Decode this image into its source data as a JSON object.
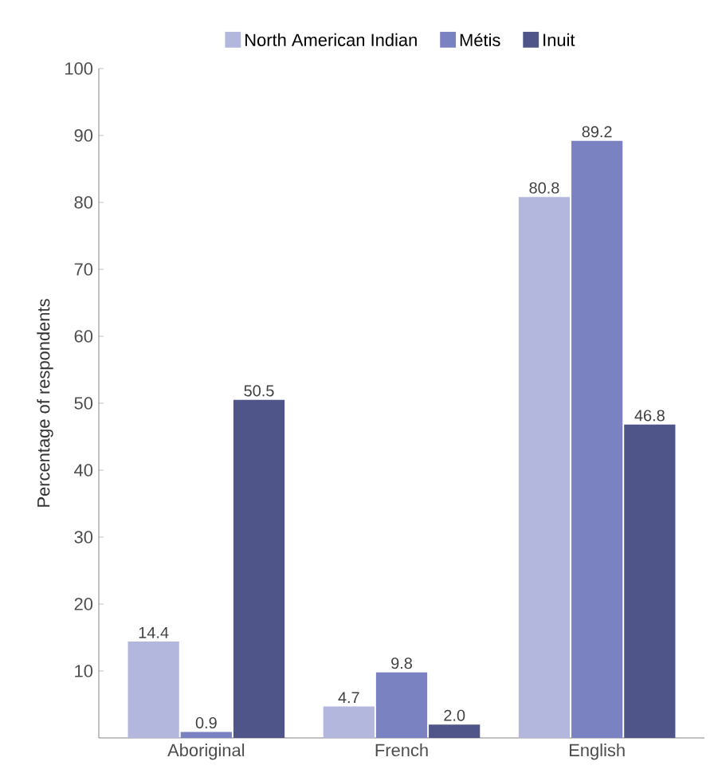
{
  "chart_data": {
    "type": "bar",
    "ylabel": "Percentage of respondents",
    "categories": [
      "Aboriginal",
      "French",
      "English"
    ],
    "series": [
      {
        "name": "North American Indian",
        "color": "#b3b7dd",
        "values": [
          14.4,
          4.7,
          80.8
        ],
        "value_labels": [
          "14.4",
          "4.7",
          "80.8"
        ]
      },
      {
        "name": "Métis",
        "color": "#7a82c2",
        "values": [
          0.9,
          9.8,
          89.2
        ],
        "value_labels": [
          "0.9",
          "9.8",
          "89.2"
        ]
      },
      {
        "name": "Inuit",
        "color": "#4f5589",
        "values": [
          50.5,
          2.0,
          46.8
        ],
        "value_labels": [
          "50.5",
          "2.0",
          "46.8"
        ]
      }
    ],
    "ylim": [
      0,
      100
    ],
    "yticks": [
      10,
      20,
      30,
      40,
      50,
      60,
      70,
      80,
      90,
      100
    ],
    "grid": false,
    "legend": "top"
  }
}
